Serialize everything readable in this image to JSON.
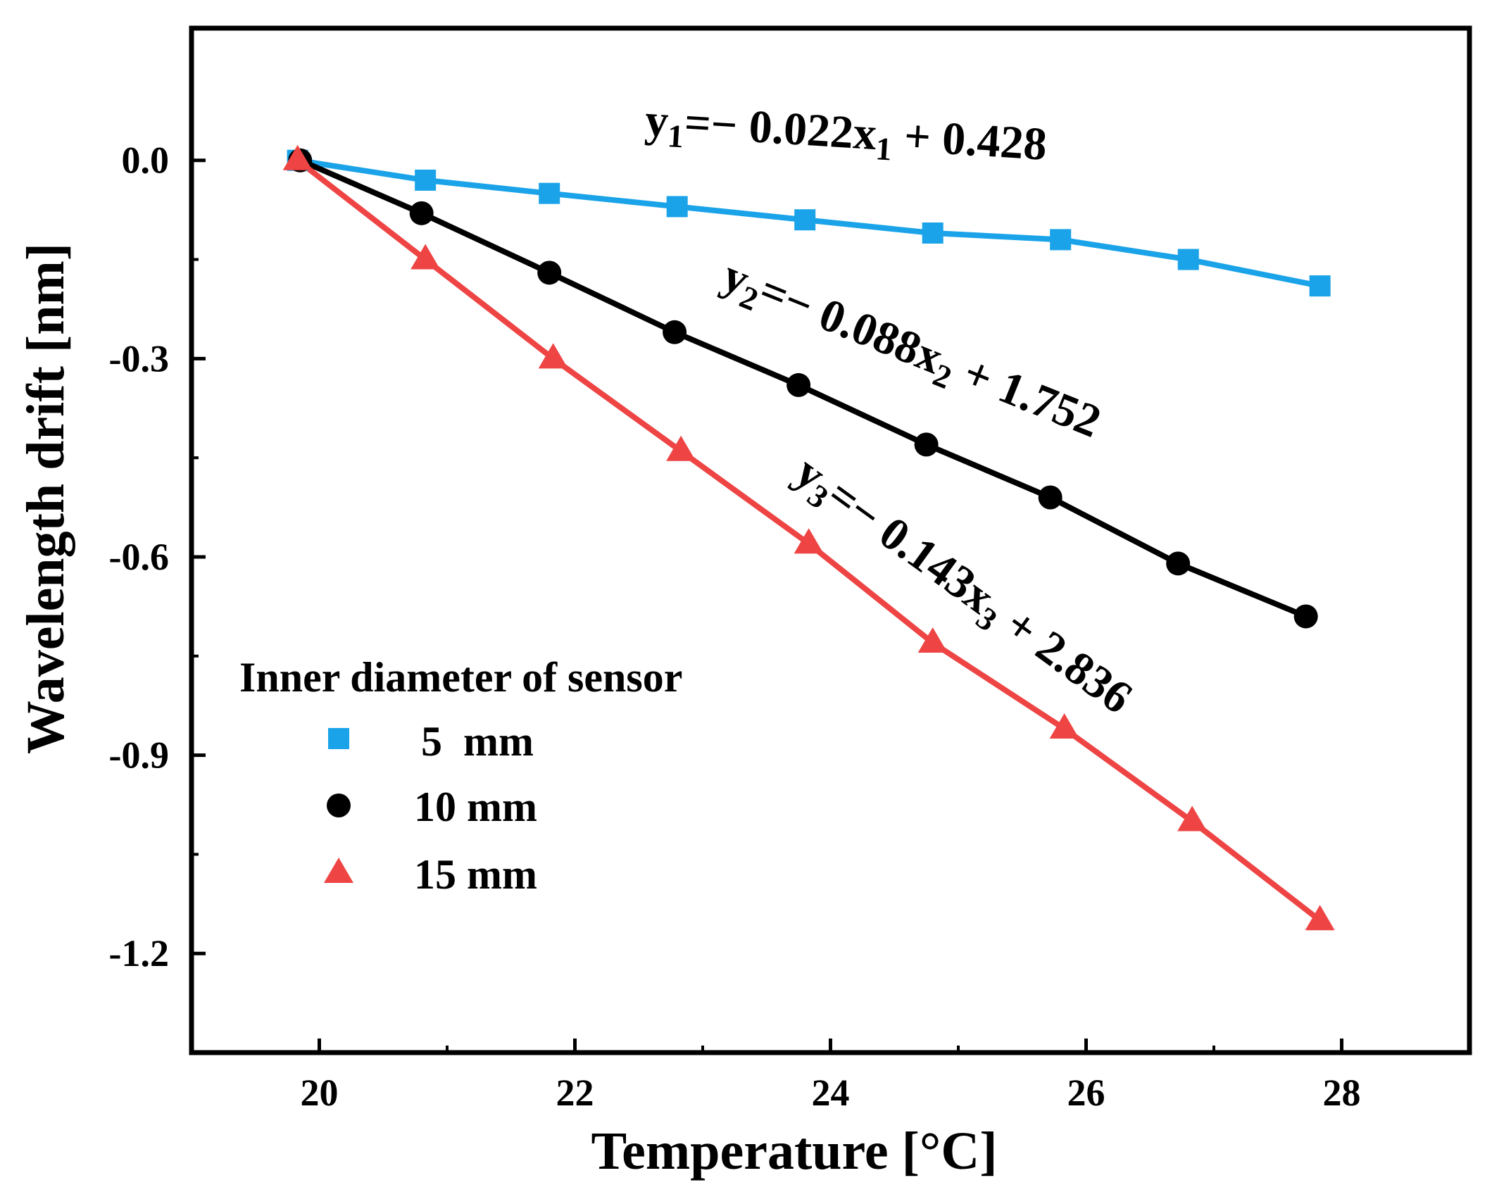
{
  "chart_data": {
    "type": "line",
    "xlabel": "Temperature [°C]",
    "ylabel": "Wavelength drift [nm]",
    "xlim": [
      19.0,
      29.0
    ],
    "ylim": [
      -1.35,
      0.2
    ],
    "x_ticks": [
      20,
      22,
      24,
      26,
      28
    ],
    "x_tick_labels": [
      "20",
      "22",
      "24",
      "26",
      "28"
    ],
    "y_ticks": [
      0.0,
      -0.3,
      -0.6,
      -0.9,
      -1.2
    ],
    "y_tick_labels": [
      "0.0",
      "-0.3",
      "-0.6",
      "-0.9",
      "-1.2"
    ],
    "legend_title": "Inner diameter of sensor",
    "series": [
      {
        "name": "5  mm",
        "marker": "square",
        "color": "#1aa3e8",
        "x": [
          19.83,
          20.83,
          21.8,
          22.8,
          23.8,
          24.8,
          25.8,
          26.8,
          27.83
        ],
        "values": [
          0.0,
          -0.03,
          -0.05,
          -0.07,
          -0.09,
          -0.11,
          -0.12,
          -0.15,
          -0.19
        ]
      },
      {
        "name": "10 mm",
        "marker": "circle",
        "color": "#000000",
        "x": [
          19.85,
          20.8,
          21.8,
          22.78,
          23.75,
          24.75,
          25.72,
          26.72,
          27.72
        ],
        "values": [
          0.0,
          -0.08,
          -0.17,
          -0.26,
          -0.34,
          -0.43,
          -0.51,
          -0.61,
          -0.69
        ]
      },
      {
        "name": "15 mm",
        "marker": "triangle",
        "color": "#ee4444",
        "x": [
          19.83,
          20.83,
          21.83,
          22.83,
          23.83,
          24.8,
          25.83,
          26.83,
          27.83
        ],
        "values": [
          0.0,
          -0.15,
          -0.3,
          -0.44,
          -0.58,
          -0.73,
          -0.86,
          -1.0,
          -1.15
        ]
      }
    ],
    "annotations": [
      {
        "series": 0,
        "prefix": "y",
        "sub": "1",
        "mid": "=− 0.022x",
        "sub2": "1",
        "suffix": " + 0.428"
      },
      {
        "series": 1,
        "prefix": "y",
        "sub": "2",
        "mid": "=− 0.088x",
        "sub2": "2",
        "suffix": " + 1.752"
      },
      {
        "series": 2,
        "prefix": "y",
        "sub": "3",
        "mid": "=− 0.143x",
        "sub2": "3",
        "suffix": " + 2.836"
      }
    ]
  }
}
